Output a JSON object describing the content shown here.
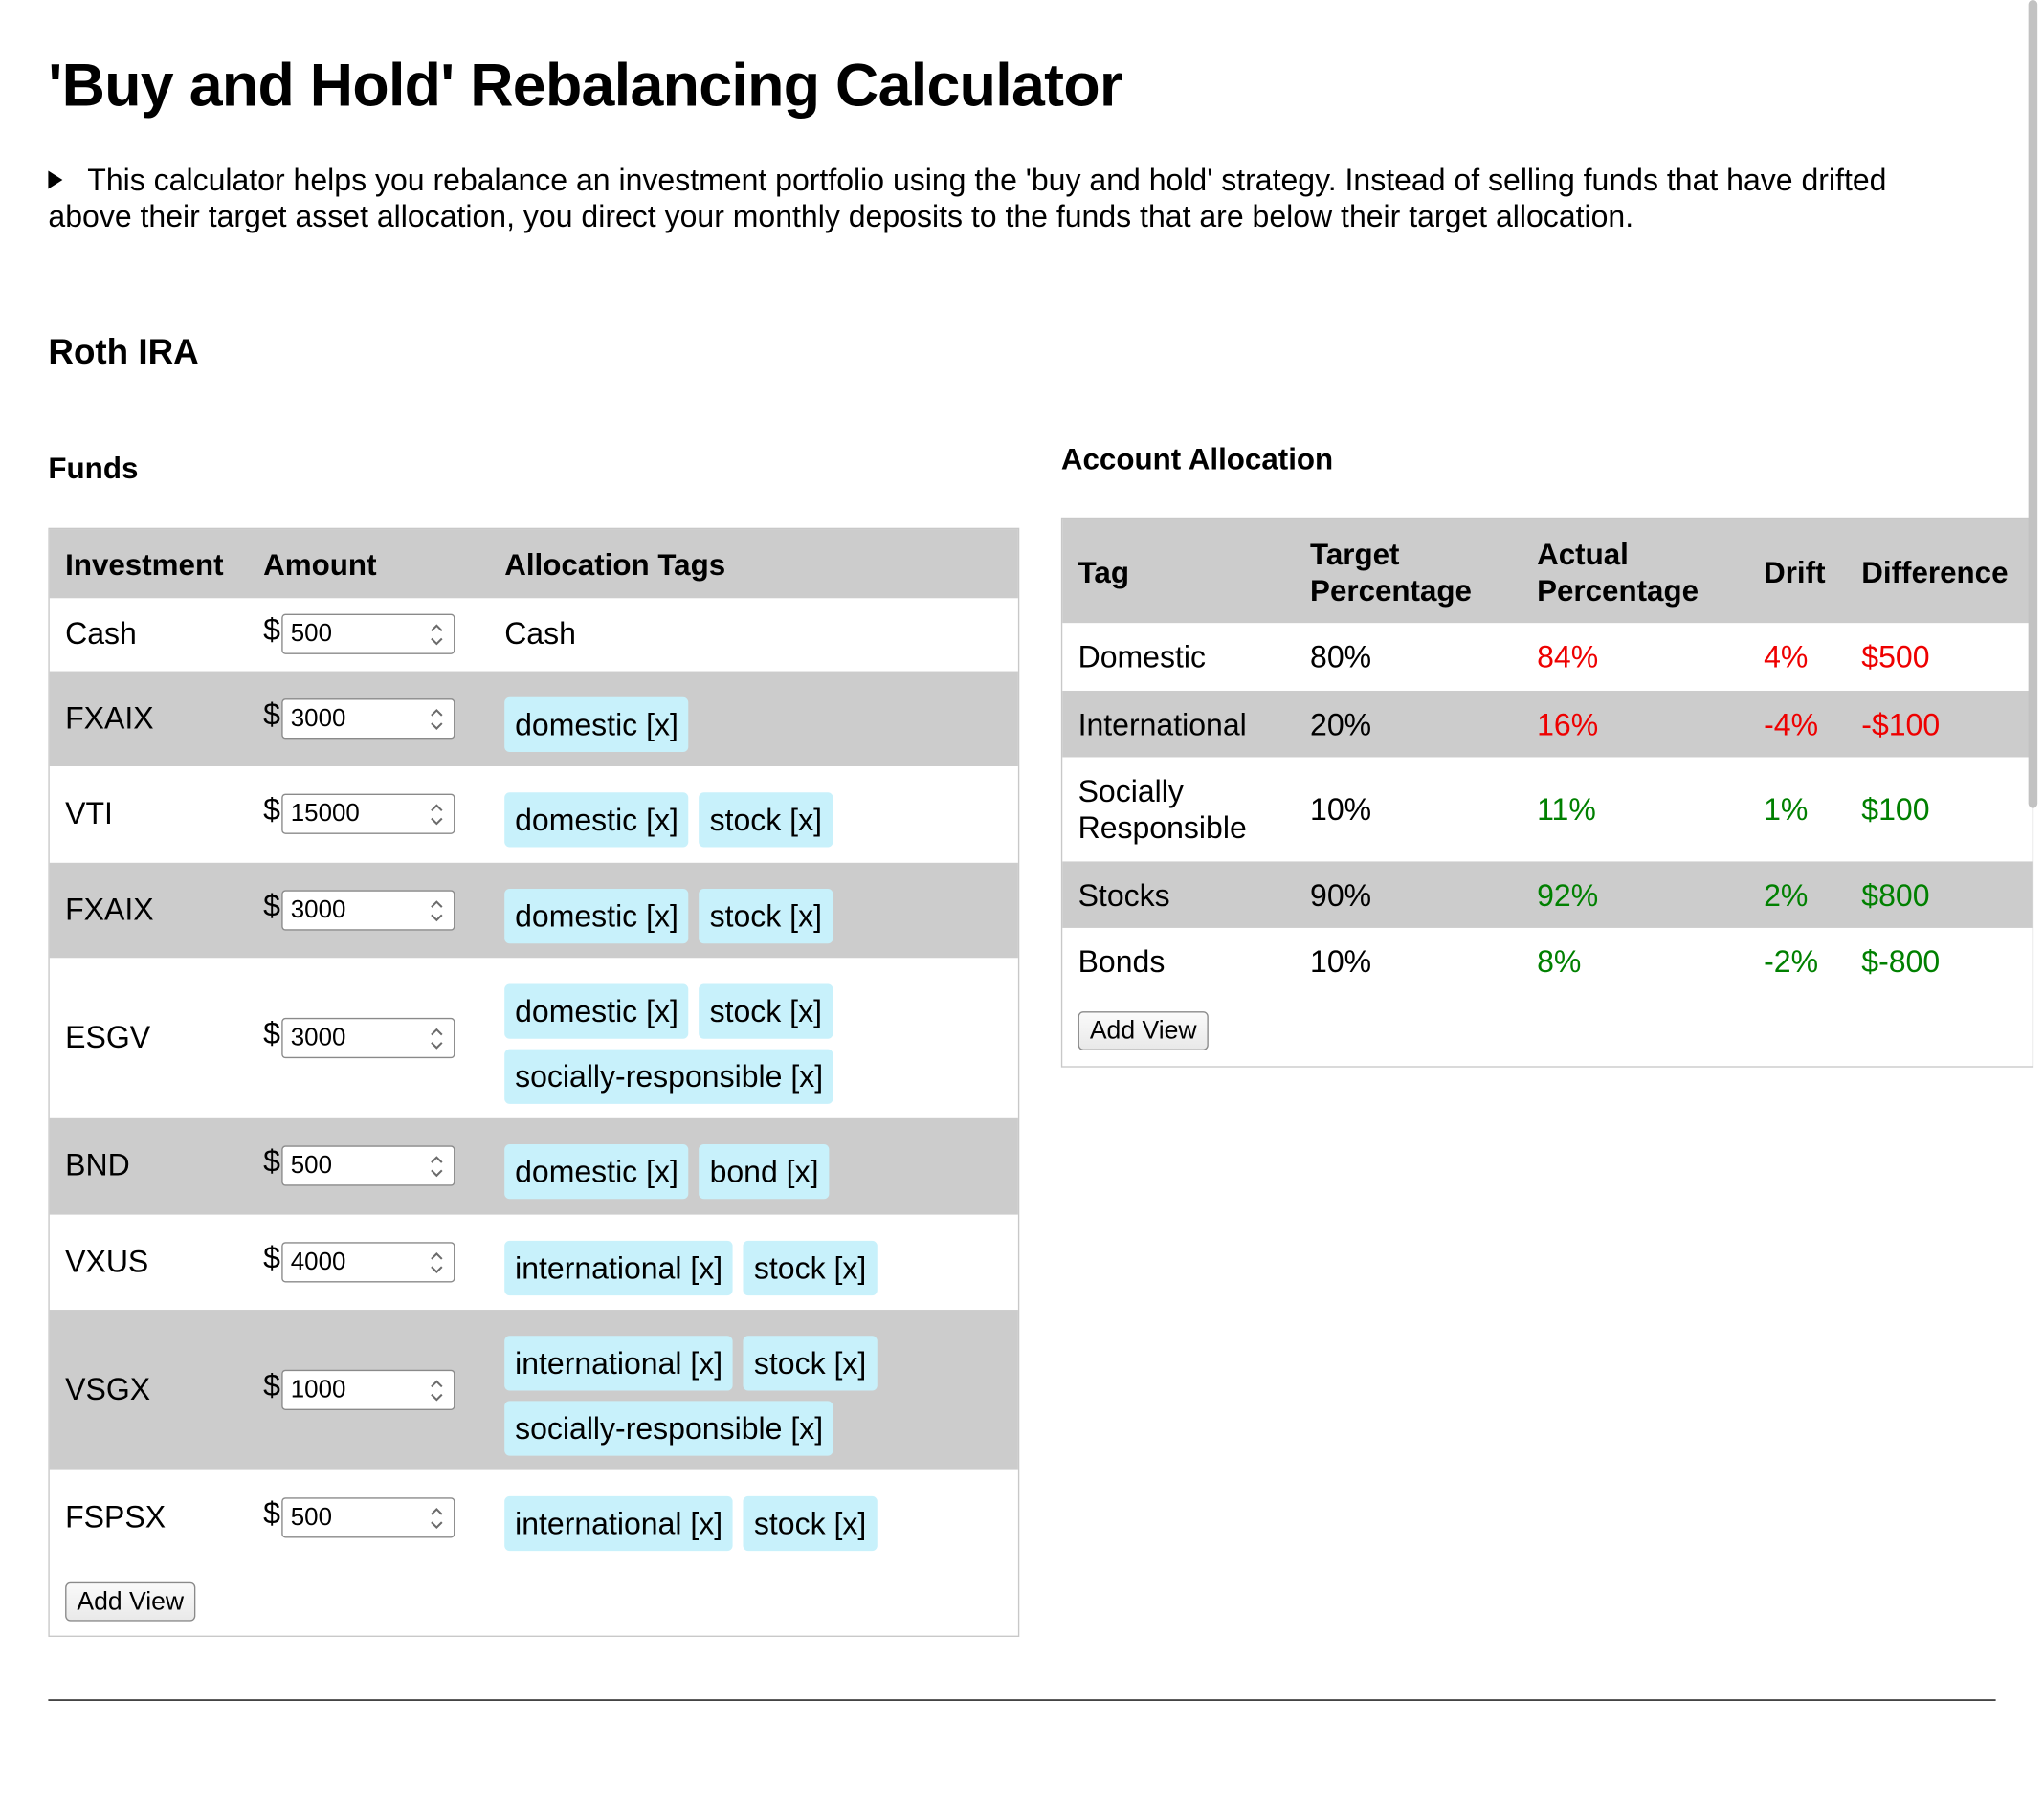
{
  "header": {
    "title": "'Buy and Hold' Rebalancing Calculator",
    "intro": "This calculator helps you rebalance an investment portfolio using the 'buy and hold' strategy. Instead of selling funds that have drifted above their target asset allocation, you direct your monthly deposits to the funds that are below their target allocation."
  },
  "account": {
    "name": "Roth IRA",
    "funds_title": "Funds",
    "allocation_title": "Account Allocation"
  },
  "funds_table": {
    "headers": [
      "Investment",
      "Amount",
      "Allocation Tags"
    ],
    "currency": "$",
    "rows": [
      {
        "name": "Cash",
        "amount": "500",
        "plain_tag": "Cash",
        "tags": []
      },
      {
        "name": "FXAIX",
        "amount": "3000",
        "tags": [
          "domestic [x]"
        ]
      },
      {
        "name": "VTI",
        "amount": "15000",
        "tags": [
          "domestic [x]",
          "stock [x]"
        ]
      },
      {
        "name": "FXAIX",
        "amount": "3000",
        "tags": [
          "domestic [x]",
          "stock [x]"
        ]
      },
      {
        "name": "ESGV",
        "amount": "3000",
        "tags": [
          "domestic [x]",
          "stock [x]",
          "socially-responsible [x]"
        ]
      },
      {
        "name": "BND",
        "amount": "500",
        "tags": [
          "domestic [x]",
          "bond [x]"
        ]
      },
      {
        "name": "VXUS",
        "amount": "4000",
        "tags": [
          "international [x]",
          "stock [x]"
        ]
      },
      {
        "name": "VSGX",
        "amount": "1000",
        "tags": [
          "international [x]",
          "stock [x]",
          "socially-responsible [x]"
        ]
      },
      {
        "name": "FSPSX",
        "amount": "500",
        "tags": [
          "international [x]",
          "stock [x]"
        ]
      }
    ],
    "add_view_label": "Add View"
  },
  "allocation_table": {
    "headers": {
      "tag": "Tag",
      "target_1": "Target",
      "target_2": "Percentage",
      "actual_1": "Actual",
      "actual_2": "Percentage",
      "drift": "Drift",
      "difference": "Difference"
    },
    "rows": [
      {
        "tag": "Domestic",
        "target": "80%",
        "actual": "84%",
        "drift": "4%",
        "difference": "$500",
        "status": "over"
      },
      {
        "tag": "International",
        "target": "20%",
        "actual": "16%",
        "drift": "-4%",
        "difference": "-$100",
        "status": "over"
      },
      {
        "tag": "Socially Responsible",
        "target": "10%",
        "actual": "11%",
        "drift": "1%",
        "difference": "$100",
        "status": "ok"
      },
      {
        "tag": "Stocks",
        "target": "90%",
        "actual": "92%",
        "drift": "2%",
        "difference": "$800",
        "status": "ok"
      },
      {
        "tag": "Bonds",
        "target": "10%",
        "actual": "8%",
        "drift": "-2%",
        "difference": "$-800",
        "status": "ok"
      }
    ],
    "add_view_label": "Add View"
  },
  "colors": {
    "over": "#ee0000",
    "ok": "#008000",
    "tag_bg": "#c8f1fb",
    "row_shade": "#cccccc"
  }
}
